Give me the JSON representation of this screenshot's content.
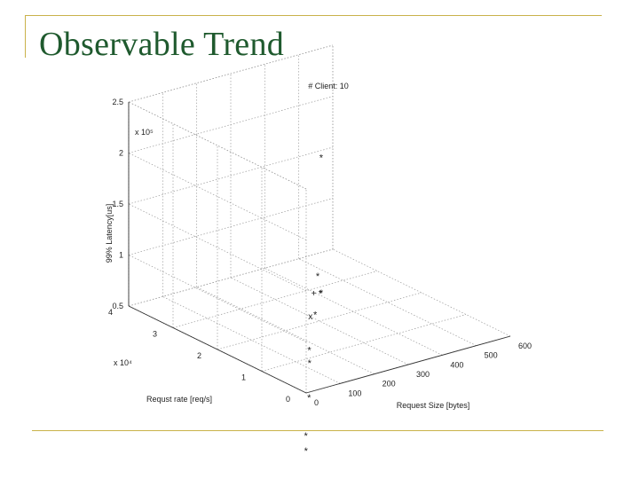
{
  "slide": {
    "title": "Observable Trend"
  },
  "chart_data": {
    "type": "scatter",
    "title": "# Client: 10",
    "xlabel": "Request Size [bytes]",
    "ylabel": "Requst rate [req/s]",
    "zlabel": "99% Latency[us]",
    "x_ticks": [
      "0",
      "100",
      "200",
      "300",
      "400",
      "500",
      "600"
    ],
    "x_range": [
      0,
      600
    ],
    "y_ticks": [
      "0",
      "1",
      "2",
      "3",
      "4"
    ],
    "y_range": [
      0,
      40000
    ],
    "y_multiplier": "x 10⁴",
    "z_ticks": [
      "0.5",
      "1",
      "1.5",
      "2",
      "2.5"
    ],
    "z_range": [
      50000,
      250000
    ],
    "z_multiplier": "x 10⁵",
    "grid": true,
    "marker_color": "#3333cc",
    "points": [
      {
        "x": 70,
        "y": 2000,
        "z": 270000,
        "m": "*"
      },
      {
        "x": 60,
        "y": 2000,
        "z": 155000,
        "m": "*"
      },
      {
        "x": 55,
        "y": 2500,
        "z": 138000,
        "m": "+"
      },
      {
        "x": 65,
        "y": 1800,
        "z": 138000,
        "m": "*"
      },
      {
        "x": 68,
        "y": 1800,
        "z": 138000,
        "m": "*"
      },
      {
        "x": 45,
        "y": 2500,
        "z": 116000,
        "m": "x"
      },
      {
        "x": 55,
        "y": 2200,
        "z": 117000,
        "m": "*"
      },
      {
        "x": 38,
        "y": 2200,
        "z": 84000,
        "m": "*"
      },
      {
        "x": 36,
        "y": 2000,
        "z": 72000,
        "m": "*"
      },
      {
        "x": 28,
        "y": 1500,
        "z": 40000,
        "m": "*"
      },
      {
        "x": 12,
        "y": 1000,
        "z": 5000,
        "m": "*"
      },
      {
        "x": 6,
        "y": 500,
        "z": -8000,
        "m": "*"
      }
    ]
  }
}
